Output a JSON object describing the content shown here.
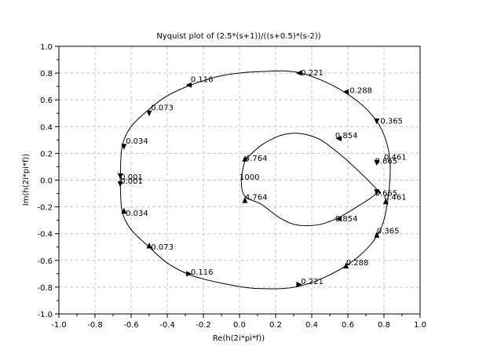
{
  "chart_data": {
    "type": "line",
    "title": "Nyquist plot of (2.5*(s+1))/((s+0.5)*(s-2))",
    "xlabel": "Re(h(2i*pi*f))",
    "ylabel": "Im(h(2i*pi*f))",
    "xlim": [
      -1.0,
      1.0
    ],
    "ylim": [
      -1.0,
      1.0
    ],
    "xticks": [
      -1.0,
      -0.8,
      -0.6,
      -0.4,
      -0.2,
      0.0,
      0.2,
      0.4,
      0.6,
      0.8,
      1.0
    ],
    "yticks": [
      -1.0,
      -0.8,
      -0.6,
      -0.4,
      -0.2,
      0.0,
      0.2,
      0.4,
      0.6,
      0.8,
      1.0
    ],
    "xtick_labels": [
      "-1.0",
      "-0.8",
      "-0.6",
      "-0.4",
      "-0.2",
      "0.0",
      "0.2",
      "0.4",
      "0.6",
      "0.8",
      "1.0"
    ],
    "ytick_labels": [
      "-1.0",
      "-0.8",
      "-0.6",
      "-0.4",
      "-0.2",
      "0.0",
      "0.2",
      "0.4",
      "0.6",
      "0.8",
      "1.0"
    ],
    "grid": true,
    "series": [
      {
        "x": [
          0.03,
          0.12,
          0.22,
          0.3,
          0.37,
          0.45,
          0.55,
          0.65,
          0.74,
          0.78,
          0.77,
          0.74,
          0.65,
          0.55,
          0.45,
          0.37,
          0.3,
          0.22,
          0.12,
          0.03,
          0.01,
          0.03
        ],
        "y": [
          0.15,
          0.26,
          0.33,
          0.35,
          0.34,
          0.3,
          0.2,
          0.08,
          -0.04,
          -0.1,
          -0.08,
          -0.12,
          -0.2,
          -0.28,
          -0.33,
          -0.34,
          -0.33,
          -0.28,
          -0.18,
          -0.12,
          0.0,
          0.15
        ]
      },
      {
        "x": [
          -0.66,
          -0.66,
          -0.65,
          -0.6,
          -0.5,
          -0.4,
          -0.27,
          -0.1,
          0.1,
          0.34,
          0.59,
          0.76,
          0.83,
          0.82,
          0.76,
          0.59,
          0.34,
          0.1,
          -0.1,
          -0.27,
          -0.4,
          -0.5,
          -0.6,
          -0.65,
          -0.66,
          -0.66
        ],
        "y": [
          0.0,
          0.02,
          0.25,
          0.4,
          0.53,
          0.63,
          0.71,
          0.78,
          0.81,
          0.8,
          0.65,
          0.44,
          0.18,
          -0.16,
          -0.42,
          -0.64,
          -0.79,
          -0.81,
          -0.77,
          -0.71,
          -0.62,
          -0.5,
          -0.37,
          -0.23,
          -0.02,
          0.0
        ]
      }
    ],
    "arrows": [
      {
        "x": 0.03,
        "y": 0.16,
        "dir": "up"
      },
      {
        "x": 0.55,
        "y": 0.31,
        "dir": "left"
      },
      {
        "x": 0.76,
        "y": 0.13,
        "dir": "down"
      },
      {
        "x": 0.76,
        "y": -0.09,
        "dir": "down"
      },
      {
        "x": 0.55,
        "y": -0.29,
        "dir": "left"
      },
      {
        "x": 0.03,
        "y": -0.15,
        "dir": "up"
      },
      {
        "x": -0.66,
        "y": 0.03,
        "dir": "down"
      },
      {
        "x": -0.66,
        "y": -0.03,
        "dir": "down"
      },
      {
        "x": -0.64,
        "y": 0.25,
        "dir": "down"
      },
      {
        "x": -0.5,
        "y": 0.5,
        "dir": "down"
      },
      {
        "x": -0.28,
        "y": 0.71,
        "dir": "left"
      },
      {
        "x": 0.33,
        "y": 0.8,
        "dir": "left"
      },
      {
        "x": 0.59,
        "y": 0.66,
        "dir": "left"
      },
      {
        "x": 0.76,
        "y": 0.44,
        "dir": "down"
      },
      {
        "x": 0.81,
        "y": -0.16,
        "dir": "up"
      },
      {
        "x": 0.76,
        "y": -0.41,
        "dir": "up"
      },
      {
        "x": 0.59,
        "y": -0.64,
        "dir": "up"
      },
      {
        "x": 0.33,
        "y": -0.78,
        "dir": "right"
      },
      {
        "x": -0.28,
        "y": -0.7,
        "dir": "right"
      },
      {
        "x": -0.5,
        "y": -0.49,
        "dir": "up"
      },
      {
        "x": -0.64,
        "y": -0.23,
        "dir": "up"
      }
    ],
    "annotations": [
      {
        "text": "0.116",
        "x": -0.27,
        "y": 0.75
      },
      {
        "text": "0.221",
        "x": 0.34,
        "y": 0.8
      },
      {
        "text": "0.288",
        "x": 0.61,
        "y": 0.67
      },
      {
        "text": "0.365",
        "x": 0.78,
        "y": 0.44
      },
      {
        "text": "0.073",
        "x": -0.49,
        "y": 0.54
      },
      {
        "text": "0.034",
        "x": -0.63,
        "y": 0.29
      },
      {
        "text": "0.854",
        "x": 0.53,
        "y": 0.33
      },
      {
        "text": "4.764",
        "x": 0.03,
        "y": 0.16
      },
      {
        "text": "0.461",
        "x": 0.8,
        "y": 0.17
      },
      {
        "text": "0.665",
        "x": 0.75,
        "y": 0.14
      },
      {
        "text": "1000",
        "x": 0.0,
        "y": 0.02
      },
      {
        "text": "0.001",
        "x": -0.66,
        "y": 0.02
      },
      {
        "text": "0.001",
        "x": -0.66,
        "y": -0.01
      },
      {
        "text": "0.665",
        "x": 0.75,
        "y": -0.1
      },
      {
        "text": "0.461",
        "x": 0.8,
        "y": -0.13
      },
      {
        "text": "4.764",
        "x": 0.03,
        "y": -0.13
      },
      {
        "text": "0.854",
        "x": 0.53,
        "y": -0.29
      },
      {
        "text": "0.034",
        "x": -0.63,
        "y": -0.25
      },
      {
        "text": "0.365",
        "x": 0.76,
        "y": -0.38
      },
      {
        "text": "0.288",
        "x": 0.59,
        "y": -0.62
      },
      {
        "text": "0.073",
        "x": -0.49,
        "y": -0.5
      },
      {
        "text": "0.116",
        "x": -0.27,
        "y": -0.69
      },
      {
        "text": "0.221",
        "x": 0.34,
        "y": -0.76
      }
    ]
  }
}
